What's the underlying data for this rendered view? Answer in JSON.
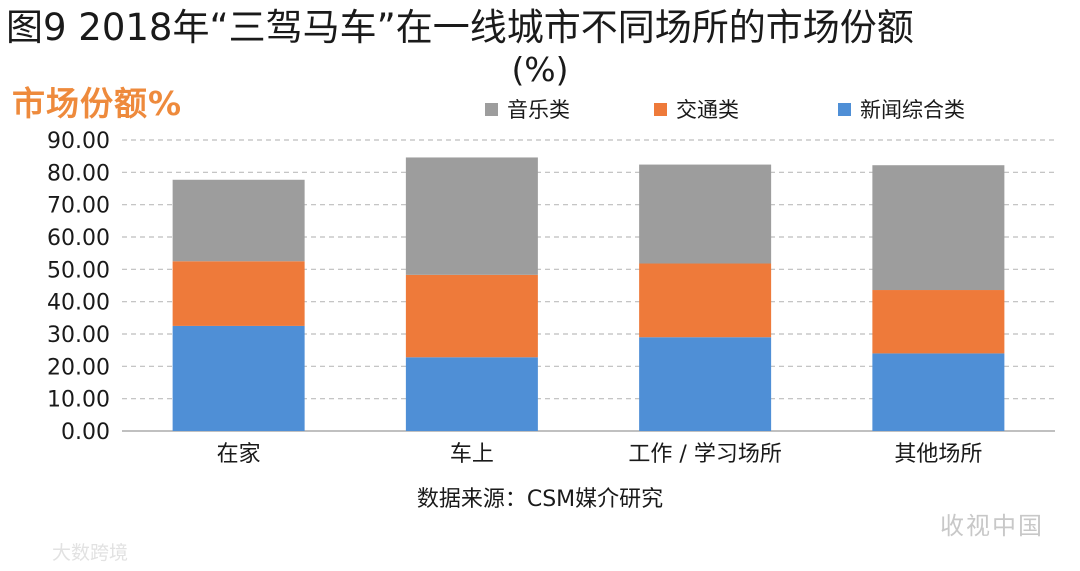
{
  "title_line1": "图9 2018年“三驾马车”在一线城市不同场所的市场份额",
  "title_line2": "(%)",
  "y_axis_label": "市场份额%",
  "source_note": "数据来源：CSM媒介研究",
  "watermark_right": "收视中国",
  "watermark_left": "大数跨境",
  "chart_data": {
    "type": "bar",
    "stacked": true,
    "categories": [
      "在家",
      "车上",
      "工作 / 学习场所",
      "其他场所"
    ],
    "series": [
      {
        "name": "新闻综合类",
        "color": "#4f8fd6",
        "values": [
          32.5,
          22.8,
          29.0,
          24.0
        ]
      },
      {
        "name": "交通类",
        "color": "#ee7a3a",
        "values": [
          20.0,
          25.5,
          22.8,
          19.6
        ]
      },
      {
        "name": "音乐类",
        "color": "#9d9d9d",
        "values": [
          25.2,
          36.3,
          30.6,
          38.6
        ]
      }
    ],
    "legend_order": [
      "音乐类",
      "交通类",
      "新闻综合类"
    ],
    "legend_position": "top",
    "ylim": [
      0,
      90
    ],
    "yticks": [
      "0.00",
      "10.00",
      "20.00",
      "30.00",
      "40.00",
      "50.00",
      "60.00",
      "70.00",
      "80.00",
      "90.00"
    ],
    "ytick_values": [
      0,
      10,
      20,
      30,
      40,
      50,
      60,
      70,
      80,
      90
    ],
    "grid": true
  }
}
